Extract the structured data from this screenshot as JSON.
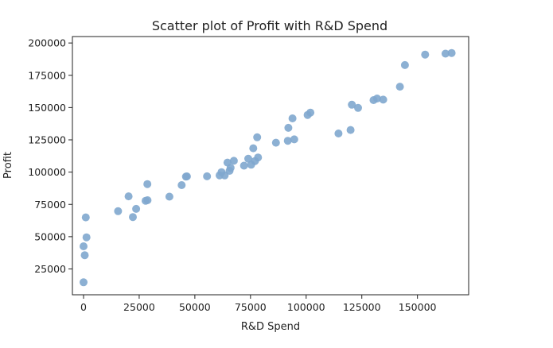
{
  "chart_data": {
    "type": "scatter",
    "title": "Scatter plot of Profit with R&D Spend",
    "xlabel": "R&D Spend",
    "ylabel": "Profit",
    "xlim": [
      -5000,
      173000
    ],
    "ylim": [
      5000,
      205000
    ],
    "xticks": [
      0,
      25000,
      50000,
      75000,
      100000,
      125000,
      150000
    ],
    "yticks": [
      25000,
      50000,
      75000,
      100000,
      125000,
      150000,
      175000,
      200000
    ],
    "grid": false,
    "marker_color": "#7fa7ce",
    "points": [
      [
        165349,
        192262
      ],
      [
        162598,
        191792
      ],
      [
        153442,
        191050
      ],
      [
        144372,
        182902
      ],
      [
        142107,
        166188
      ],
      [
        131877,
        156991
      ],
      [
        134615,
        156123
      ],
      [
        130298,
        155753
      ],
      [
        120543,
        152212
      ],
      [
        123335,
        149760
      ],
      [
        101913,
        146122
      ],
      [
        100672,
        144259
      ],
      [
        93864,
        141586
      ],
      [
        91992,
        134307
      ],
      [
        119943,
        132602
      ],
      [
        114524,
        129917
      ],
      [
        78013,
        126993
      ],
      [
        94657,
        125371
      ],
      [
        91749,
        124267
      ],
      [
        86420,
        122777
      ],
      [
        76254,
        118474
      ],
      [
        78389,
        111314
      ],
      [
        73995,
        110352
      ],
      [
        67533,
        108734
      ],
      [
        77044,
        108553
      ],
      [
        64665,
        107404
      ],
      [
        75329,
        105734
      ],
      [
        72108,
        105008
      ],
      [
        66052,
        103282
      ],
      [
        65606,
        101004
      ],
      [
        61994,
        99938
      ],
      [
        61136,
        97484
      ],
      [
        63409,
        97428
      ],
      [
        55494,
        96779
      ],
      [
        46426,
        96712
      ],
      [
        46014,
        96479
      ],
      [
        28664,
        90708
      ],
      [
        44070,
        89949
      ],
      [
        20230,
        81230
      ],
      [
        38559,
        81006
      ],
      [
        28754,
        78240
      ],
      [
        27893,
        77799
      ],
      [
        23641,
        71498
      ],
      [
        15506,
        69759
      ],
      [
        22178,
        65201
      ],
      [
        1001,
        64927
      ],
      [
        1315,
        49491
      ],
      [
        0,
        42560
      ],
      [
        543,
        35673
      ],
      [
        0,
        14681
      ]
    ]
  }
}
